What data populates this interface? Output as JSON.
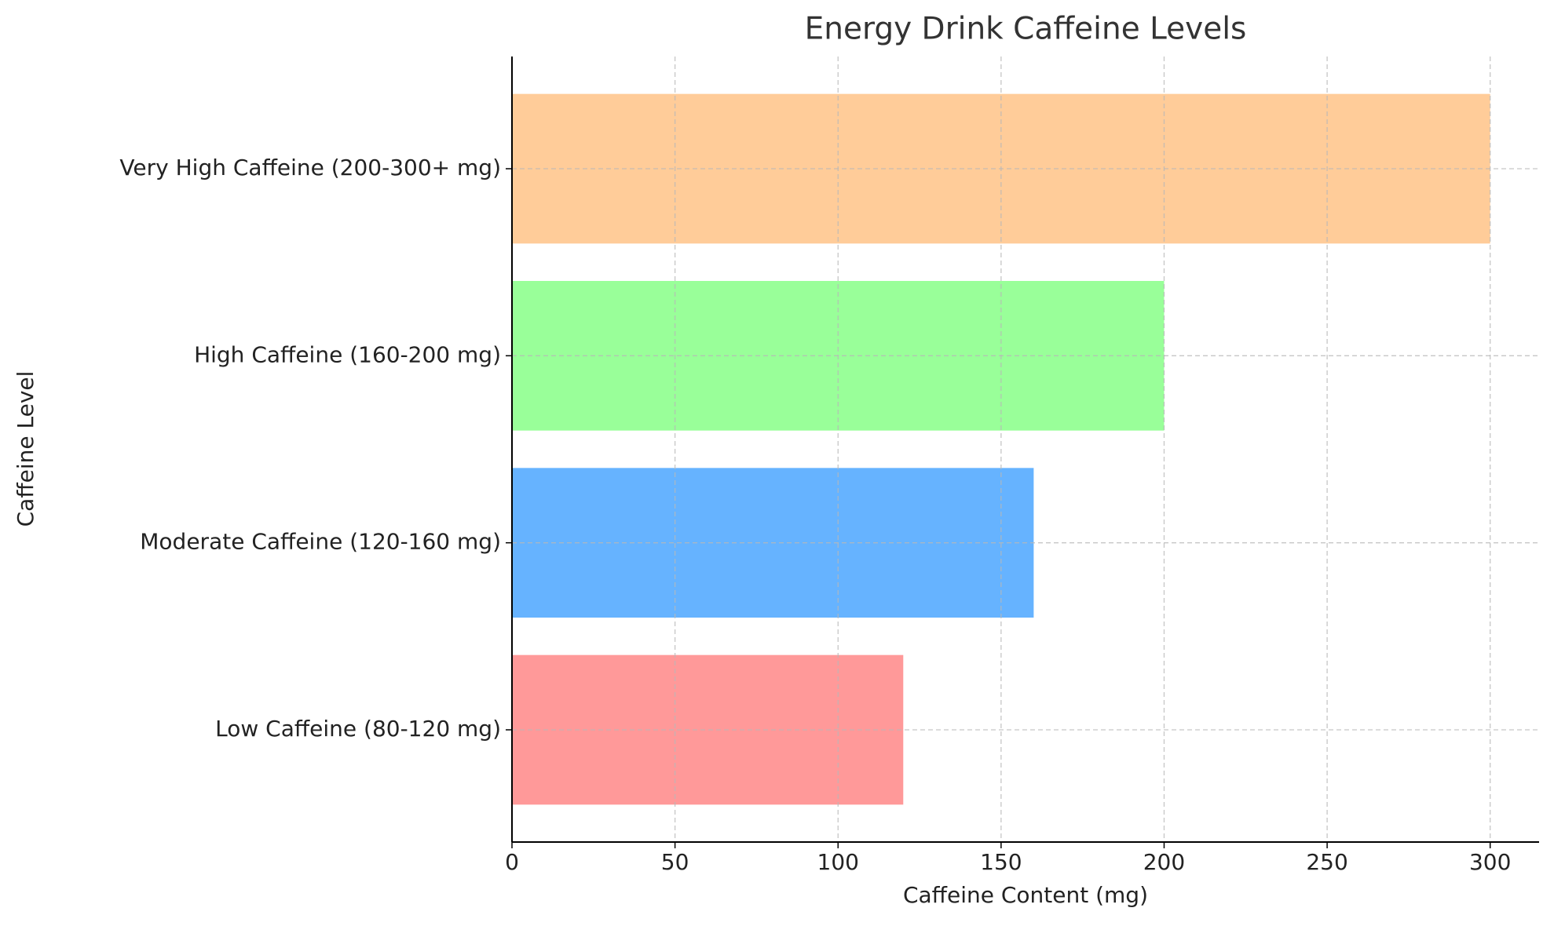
{
  "chart_data": {
    "type": "bar",
    "orientation": "horizontal",
    "title": "Energy Drink Caffeine Levels",
    "xlabel": "Caffeine Content (mg)",
    "ylabel": "Caffeine Level",
    "categories": [
      "Low Caffeine (80-120 mg)",
      "Moderate Caffeine (120-160 mg)",
      "High Caffeine (160-200 mg)",
      "Very High Caffeine (200-300+ mg)"
    ],
    "values": [
      120,
      160,
      200,
      300
    ],
    "colors": [
      "#ff9999",
      "#66b3ff",
      "#99ff99",
      "#ffcc99"
    ],
    "xlim": [
      0,
      315
    ],
    "xticks": [
      0,
      50,
      100,
      150,
      200,
      250,
      300
    ],
    "grid": true
  }
}
